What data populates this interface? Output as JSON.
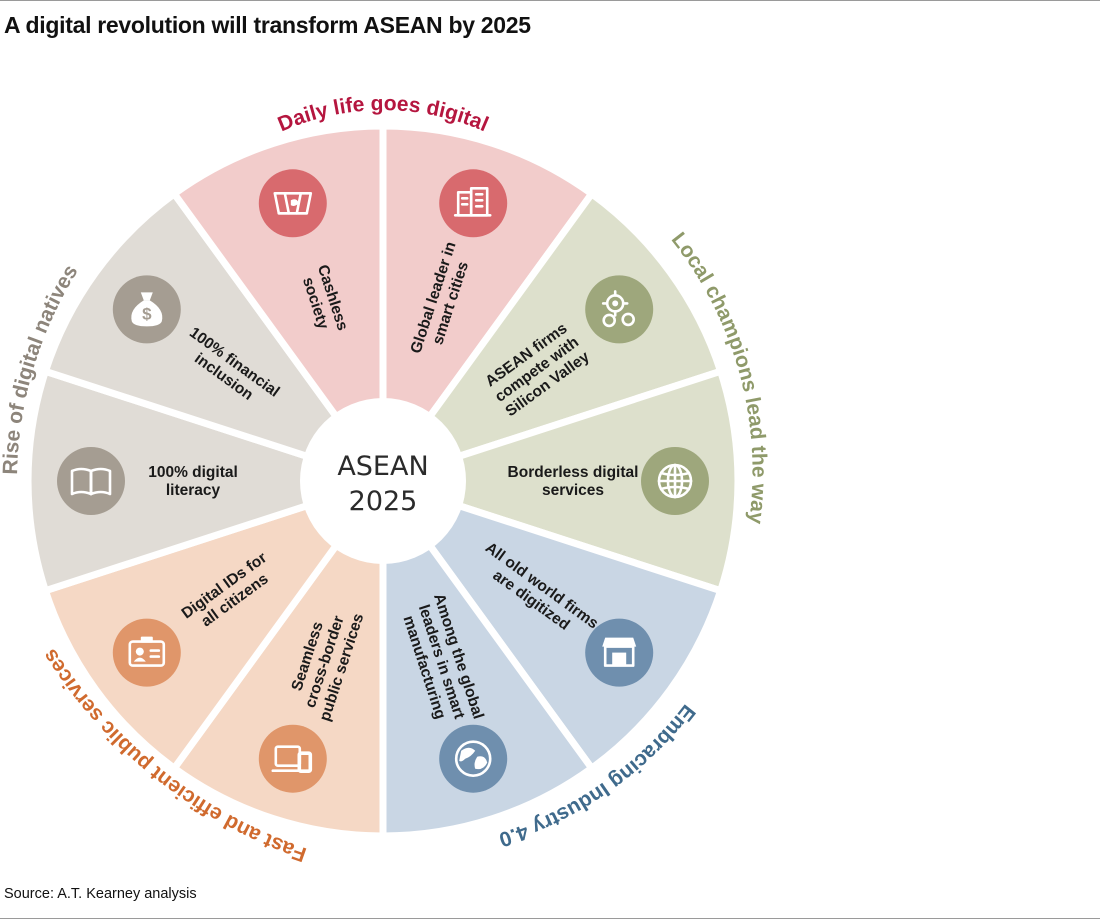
{
  "title": "A digital revolution will transform ASEAN by 2025",
  "source": "Source: A.T. Kearney analysis",
  "center": {
    "line1": "ASEAN",
    "line2": "2025"
  },
  "themes": [
    {
      "label": "Daily life goes digital",
      "color": "#b5163f"
    },
    {
      "label": "Local champions lead the way",
      "color": "#8f9a6a"
    },
    {
      "label": "Embracing Industry 4.0",
      "color": "#3f6a8c"
    },
    {
      "label": "Fast and efficient public services",
      "color": "#d06a2e"
    },
    {
      "label": "Rise of digital natives",
      "color": "#8d857b"
    }
  ],
  "segments": [
    {
      "lines": [
        "Global leader in",
        "smart cities"
      ],
      "icon": "buildings-icon",
      "fill": "#f2cccb",
      "icon_color": "#d86a6e"
    },
    {
      "lines": [
        "ASEAN firms",
        "compete with",
        "Silicon Valley"
      ],
      "icon": "gears-icon",
      "fill": "#dde0cc",
      "icon_color": "#9ea77c"
    },
    {
      "lines": [
        "Borderless digital",
        "services"
      ],
      "icon": "globe-grid-icon",
      "fill": "#dde0cc",
      "icon_color": "#9ea77c"
    },
    {
      "lines": [
        "All old world firms",
        "are digitized"
      ],
      "icon": "storefront-icon",
      "fill": "#c9d6e4",
      "icon_color": "#6f8fae"
    },
    {
      "lines": [
        "Among the global",
        "leaders in smart",
        "manufacturing"
      ],
      "icon": "earth-icon",
      "fill": "#c9d6e4",
      "icon_color": "#6f8fae"
    },
    {
      "lines": [
        "Seamless",
        "cross-border",
        "public services"
      ],
      "icon": "devices-icon",
      "fill": "#f5d8c5",
      "icon_color": "#e0966a"
    },
    {
      "lines": [
        "Digital IDs for",
        "all citizens"
      ],
      "icon": "id-card-icon",
      "fill": "#f5d8c5",
      "icon_color": "#e0966a"
    },
    {
      "lines": [
        "100% digital",
        "literacy"
      ],
      "icon": "book-icon",
      "fill": "#e0dcd6",
      "icon_color": "#a59d92"
    },
    {
      "lines": [
        "100% financial",
        "inclusion"
      ],
      "icon": "money-bag-icon",
      "fill": "#e0dcd6",
      "icon_color": "#a59d92"
    },
    {
      "lines": [
        "Cashless",
        "society"
      ],
      "icon": "cash-hand-icon",
      "fill": "#f2cccb",
      "icon_color": "#d86a6e"
    }
  ]
}
